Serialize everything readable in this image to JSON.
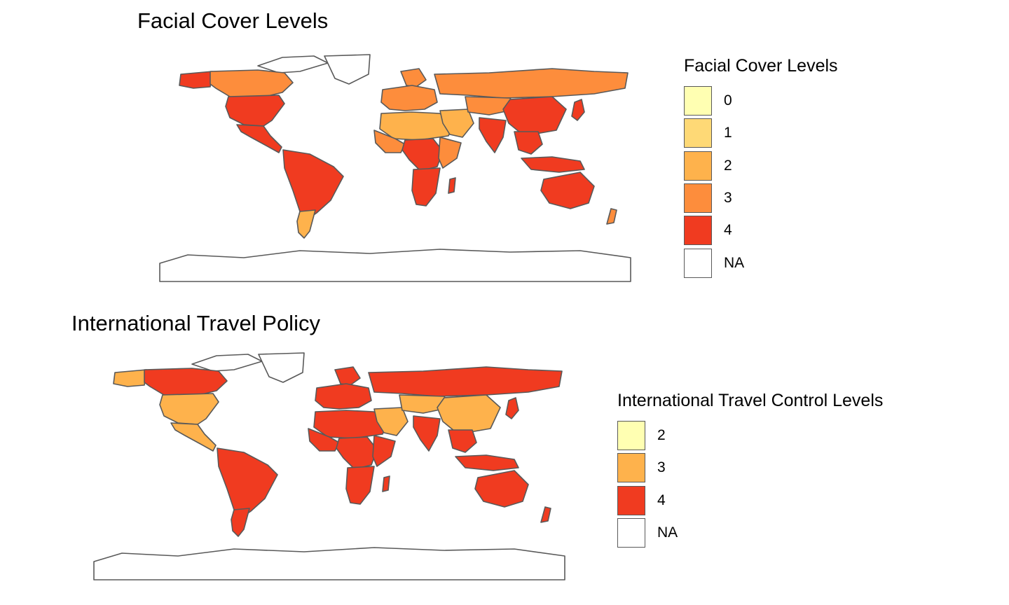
{
  "maps": [
    {
      "title": "Facial Cover Levels",
      "legend": {
        "title": "Facial Cover Levels",
        "items": [
          {
            "label": "0",
            "color": "#FFFFB2"
          },
          {
            "label": "1",
            "color": "#FED976"
          },
          {
            "label": "2",
            "color": "#FEB24C"
          },
          {
            "label": "3",
            "color": "#FD8D3C"
          },
          {
            "label": "4",
            "color": "#F03B20"
          },
          {
            "label": "NA",
            "color": "#FFFFFF"
          }
        ]
      },
      "regions": {
        "north_america": "3",
        "canada_arctic": "NA",
        "alaska": "4",
        "usa": "4",
        "mexico_central": "4",
        "greenland": "NA",
        "south_america_north": "4",
        "argentina": "2",
        "europe": "3",
        "russia": "3",
        "scandinavia": "3",
        "north_africa": "2",
        "west_africa": "3",
        "central_africa": "4",
        "east_africa": "3",
        "southern_africa": "4",
        "madagascar": "4",
        "middle_east": "2",
        "central_asia": "3",
        "china": "4",
        "india": "4",
        "southeast_asia": "4",
        "indonesia": "4",
        "japan": "4",
        "australia": "4",
        "new_zealand": "3",
        "antarctica": "NA"
      }
    },
    {
      "title": "International Travel Policy",
      "legend": {
        "title": "International Travel Control Levels",
        "items": [
          {
            "label": "2",
            "color": "#FFFFB2"
          },
          {
            "label": "3",
            "color": "#FEB24C"
          },
          {
            "label": "4",
            "color": "#F03B20"
          },
          {
            "label": "NA",
            "color": "#FFFFFF"
          }
        ]
      },
      "regions": {
        "north_america": "4",
        "canada_arctic": "NA",
        "alaska": "3",
        "usa": "3",
        "mexico_central": "3",
        "greenland": "NA",
        "south_america_north": "4",
        "argentina": "4",
        "europe": "4",
        "russia": "4",
        "scandinavia": "4",
        "north_africa": "4",
        "west_africa": "4",
        "central_africa": "4",
        "east_africa": "4",
        "southern_africa": "4",
        "madagascar": "4",
        "middle_east": "3",
        "central_asia": "3",
        "china": "3",
        "india": "4",
        "southeast_asia": "4",
        "indonesia": "4",
        "japan": "4",
        "australia": "4",
        "new_zealand": "4",
        "antarctica": "NA"
      }
    }
  ]
}
